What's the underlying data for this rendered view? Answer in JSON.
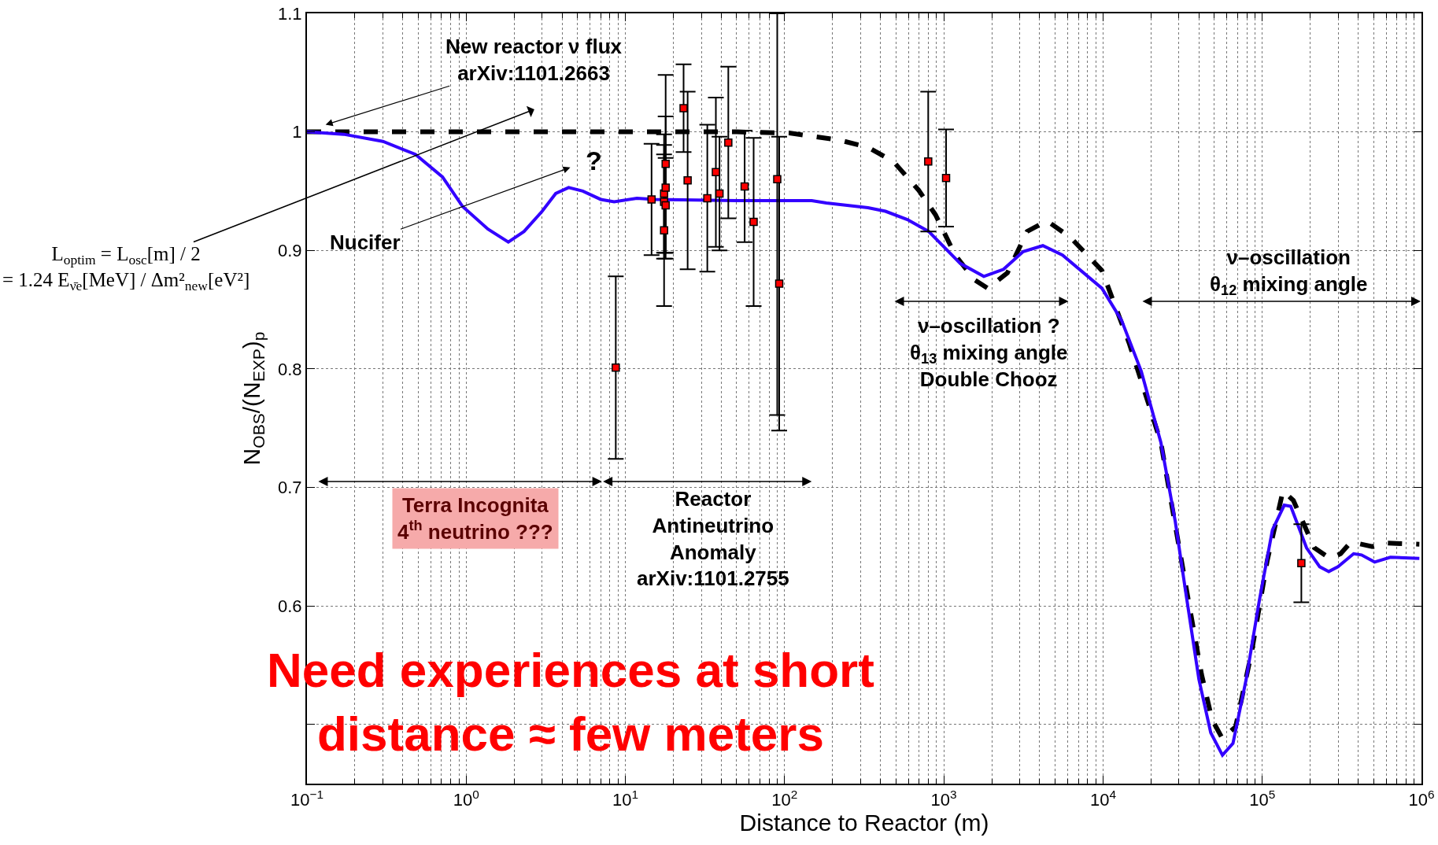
{
  "chart_data": {
    "type": "line",
    "xlabel": "Distance to Reactor (m)",
    "ylabel": "N$_{OBS}$/(N$_{EXP}$)$_{p}$",
    "log": "x",
    "grid": true,
    "xlim": [
      0.1,
      1000000
    ],
    "ylim": [
      0.45,
      1.1
    ],
    "xticks": [
      {
        "value": 0.1,
        "label": "10$^{−1}$"
      },
      {
        "value": 1,
        "label": "10$^{0}$"
      },
      {
        "value": 10,
        "label": "10$^{1}$"
      },
      {
        "value": 100,
        "label": "10$^{2}$"
      },
      {
        "value": 1000,
        "label": "10$^{3}$"
      },
      {
        "value": 10000,
        "label": "10$^{4}$"
      },
      {
        "value": 100000,
        "label": "10$^{5}$"
      },
      {
        "value": 1000000,
        "label": "10$^{6}$"
      }
    ],
    "yticks": [
      {
        "value": 0.5,
        "label": null
      },
      0.6,
      0.7,
      0.8,
      0.9,
      1,
      1.1
    ],
    "annotations": [
      "New reactor ν flux\narXiv:1101.2663",
      "?",
      "Nucifer",
      "L$_{optim}$ = L$_{osc}$[m] / 2\n= 1.24 E$_{ν̄e}$[MeV] / Δm²$_{new}$[eV²]",
      "Terra Incognita\n4$^{th}$ neutrino ???",
      "Reactor\nAntineutrino\nAnomaly\narXiv:1101.2755",
      "ν–oscillation ?\nθ$_{13}$ mixing angle\nDouble Chooz",
      "ν–oscillation\nθ$_{12}$ mixing angle",
      "Need experiences at short\ndistance ≈ few meters"
    ],
    "series": [
      {
        "type": "line",
        "line_style": "dashed",
        "color": "#000000",
        "x": [
          0.1,
          1,
          10,
          50,
          107,
          222,
          334,
          482,
          693,
          887,
          1178,
          1566,
          1889,
          2508,
          3337,
          4436,
          6237,
          9840,
          14650,
          23070,
          34430,
          41590,
          48400,
          56230,
          68020,
          85500,
          107400,
          134900,
          156800,
          212300,
          266700,
          310500,
          361400,
          489800,
          615000,
          970000
        ],
        "values": [
          1,
          1,
          1,
          1,
          0.999,
          0.993,
          0.987,
          0.975,
          0.951,
          0.93,
          0.896,
          0.875,
          0.868,
          0.881,
          0.916,
          0.925,
          0.911,
          0.883,
          0.821,
          0.738,
          0.604,
          0.542,
          0.504,
          0.488,
          0.498,
          0.56,
          0.638,
          0.697,
          0.689,
          0.649,
          0.64,
          0.644,
          0.654,
          0.65,
          0.653,
          0.652
        ]
      },
      {
        "type": "line",
        "line_style": "solid",
        "color": "#3300ff",
        "x": [
          0.1,
          0.17,
          0.3,
          0.48,
          0.71,
          0.95,
          1.37,
          1.84,
          2.31,
          3.0,
          3.65,
          4.4,
          5.4,
          7.0,
          8.5,
          11.8,
          15.4,
          50,
          148,
          183,
          334,
          430,
          590,
          803,
          1268,
          1783,
          2371,
          3150,
          4188,
          5563,
          9840,
          13070,
          17380,
          23070,
          28440,
          33110,
          40000,
          47470,
          56230,
          65470,
          79250,
          95700,
          115800,
          137500,
          151000,
          189700,
          229500,
          261800,
          299000,
          375000,
          420000,
          508000,
          638000,
          970000
        ],
        "values": [
          1,
          0.998,
          0.992,
          0.981,
          0.962,
          0.937,
          0.918,
          0.907,
          0.916,
          0.933,
          0.948,
          0.953,
          0.95,
          0.943,
          0.941,
          0.944,
          0.943,
          0.942,
          0.942,
          0.94,
          0.936,
          0.933,
          0.926,
          0.916,
          0.889,
          0.878,
          0.884,
          0.899,
          0.904,
          0.896,
          0.868,
          0.841,
          0.798,
          0.738,
          0.671,
          0.611,
          0.538,
          0.493,
          0.474,
          0.484,
          0.538,
          0.604,
          0.664,
          0.685,
          0.684,
          0.649,
          0.633,
          0.629,
          0.633,
          0.644,
          0.643,
          0.637,
          0.641,
          0.64
        ]
      },
      {
        "type": "scatter",
        "marker": "square",
        "color": "#ff0000",
        "x": [
          8.7,
          14.6,
          17.5,
          17.5,
          17.5,
          17.9,
          17.9,
          17.9,
          23.2,
          24.6,
          32.7,
          37,
          39,
          44.3,
          56.1,
          63.9,
          89.9,
          92.5,
          798,
          1033,
          176000
        ],
        "values": [
          0.801,
          0.943,
          0.948,
          0.941,
          0.917,
          0.973,
          0.953,
          0.938,
          1.02,
          0.959,
          0.944,
          0.966,
          0.948,
          0.991,
          0.954,
          0.924,
          0.96,
          0.872,
          0.975,
          0.961,
          0.636
        ],
        "errors": [
          0.077,
          0.047,
          0.05,
          0.048,
          0.064,
          0.075,
          0.06,
          0.04,
          0.037,
          0.075,
          0.062,
          0.063,
          0.048,
          0.064,
          0.047,
          0.071,
          [
            0.761,
            1.1
          ],
          0.124,
          0.059,
          0.041,
          0.033
        ]
      }
    ]
  }
}
